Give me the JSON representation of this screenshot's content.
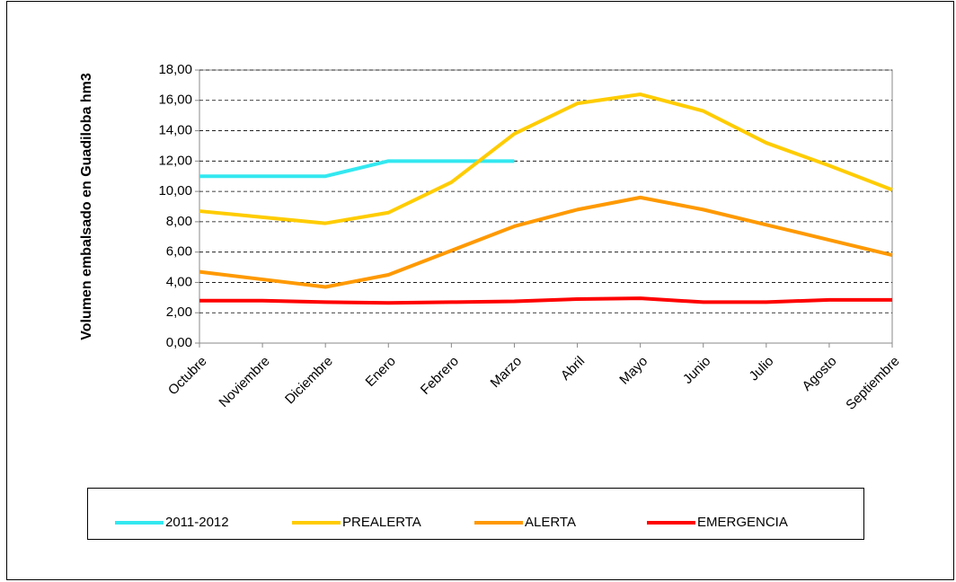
{
  "chart_data": {
    "type": "line",
    "y_label": "Volumen embalsado en Guadiloba hm3",
    "categories": [
      "Octubre",
      "Noviembre",
      "Diciembre",
      "Enero",
      "Febrero",
      "Marzo",
      "Abril",
      "Mayo",
      "Junio",
      "Julio",
      "Agosto",
      "Septiembre"
    ],
    "series": [
      {
        "name": "2011-2012",
        "color": "#33e8f0",
        "values": [
          11,
          11,
          11,
          12,
          12,
          12,
          null,
          null,
          null,
          null,
          null,
          null
        ]
      },
      {
        "name": "PREALERTA",
        "color": "#ffcc00",
        "values": [
          8.7,
          8.3,
          7.9,
          8.6,
          10.6,
          13.8,
          15.8,
          16.4,
          15.3,
          13.2,
          11.7,
          10.1
        ]
      },
      {
        "name": "ALERTA",
        "color": "#ff9900",
        "values": [
          4.7,
          4.2,
          3.7,
          4.5,
          6.1,
          7.7,
          8.8,
          9.6,
          8.8,
          7.8,
          6.8,
          5.8
        ]
      },
      {
        "name": "EMERGENCIA",
        "color": "#ff0000",
        "values": [
          2.8,
          2.8,
          2.7,
          2.65,
          2.7,
          2.75,
          2.9,
          2.95,
          2.7,
          2.7,
          2.85,
          2.85
        ]
      }
    ],
    "ylim": [
      0,
      18
    ],
    "yticks": [
      {
        "value": 0,
        "label": "0,00"
      },
      {
        "value": 2,
        "label": "2,00"
      },
      {
        "value": 4,
        "label": "4,00"
      },
      {
        "value": 6,
        "label": "6,00"
      },
      {
        "value": 8,
        "label": "8,00"
      },
      {
        "value": 10,
        "label": "10,00"
      },
      {
        "value": 12,
        "label": "12,00"
      },
      {
        "value": 14,
        "label": "14,00"
      },
      {
        "value": 16,
        "label": "16,00"
      },
      {
        "value": 18,
        "label": "18,00"
      }
    ],
    "grid": true,
    "legend": "bottom"
  }
}
